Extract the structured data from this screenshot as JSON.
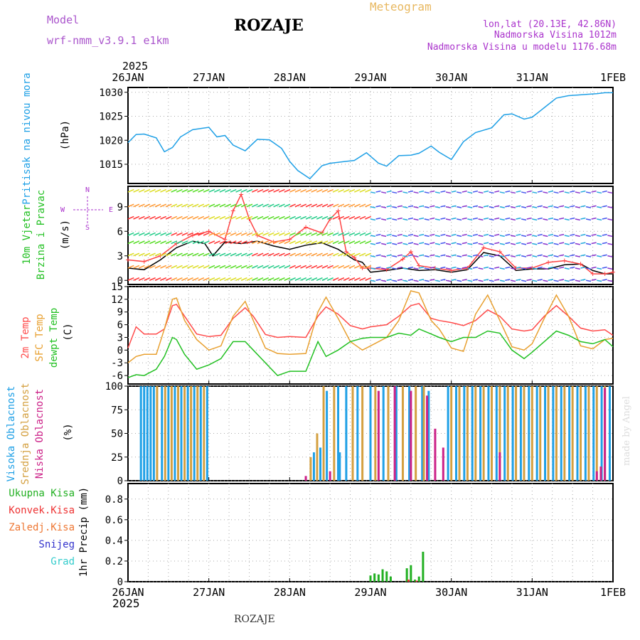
{
  "header": {
    "model_label": "Model",
    "model_name": "wrf-nmm_v3.9.1 e1km",
    "station": "ROZAJE",
    "title": "Meteogram",
    "coords": "lon,lat (20.13E, 42.86N)",
    "elevation": "Nadmorska Visina 1012m",
    "model_elevation": "Nadmorska Visina u modelu 1176.68m",
    "footer_station": "ROZAJE",
    "credit": "made by Angel",
    "year": "2025",
    "colors": {
      "model": "#aa55cc",
      "title": "#e8b860",
      "coords": "#aa33cc"
    }
  },
  "time_axis": {
    "labels": [
      "26JAN",
      "27JAN",
      "28JAN",
      "29JAN",
      "30JAN",
      "31JAN",
      "1FEB"
    ]
  },
  "chart_data": [
    {
      "type": "line",
      "id": "pressure",
      "ylabel_rotated": "Pritisak na nivou mora",
      "unit": "(hPa)",
      "ylim": [
        1011,
        1031
      ],
      "yticks": [
        1015,
        1020,
        1025,
        1030
      ],
      "grid": true,
      "series": [
        {
          "color": "#1fa0e6",
          "x": [
            0,
            0.1,
            0.2,
            0.35,
            0.45,
            0.55,
            0.65,
            0.8,
            1.0,
            1.1,
            1.2,
            1.3,
            1.45,
            1.6,
            1.75,
            1.9,
            2.0,
            2.1,
            2.25,
            2.4,
            2.5,
            2.6,
            2.7,
            2.8,
            2.95,
            3.1,
            3.2,
            3.35,
            3.5,
            3.6,
            3.75,
            3.85,
            4.0,
            4.15,
            4.3,
            4.5,
            4.65,
            4.75,
            4.9,
            5.0,
            5.15,
            5.3,
            5.45,
            5.55,
            5.7,
            5.8,
            5.9,
            6.0
          ],
          "values": [
            1019.5,
            1021.2,
            1021.3,
            1020.5,
            1017.6,
            1018.5,
            1020.7,
            1022.2,
            1022.7,
            1020.7,
            1021.0,
            1019.0,
            1017.8,
            1020.2,
            1020.1,
            1018.3,
            1015.6,
            1013.7,
            1012.0,
            1014.7,
            1015.2,
            1015.4,
            1015.6,
            1015.8,
            1017.4,
            1015.2,
            1014.6,
            1016.8,
            1016.9,
            1017.3,
            1018.8,
            1017.5,
            1016.0,
            1019.7,
            1021.6,
            1022.6,
            1025.3,
            1025.5,
            1024.4,
            1024.8,
            1026.8,
            1028.8,
            1029.3,
            1029.4,
            1029.6,
            1029.7,
            1029.9,
            1029.9
          ]
        }
      ]
    },
    {
      "type": "line",
      "id": "wind",
      "ylabel_rotated": [
        "10m Vjetar",
        "Brzina i Pravac"
      ],
      "unit": "(m/s)",
      "compass": {
        "n": "N",
        "e": "E",
        "s": "S",
        "w": "W"
      },
      "ylim": [
        -0.5,
        11.5
      ],
      "yticks": [
        0,
        3,
        6,
        9
      ],
      "grid": true,
      "series": [
        {
          "name": "speed",
          "color": "#000000",
          "x": [
            0,
            0.2,
            0.4,
            0.6,
            0.8,
            0.95,
            1.05,
            1.2,
            1.4,
            1.6,
            1.8,
            2.0,
            2.2,
            2.4,
            2.6,
            2.8,
            2.9,
            3.0,
            3.2,
            3.4,
            3.6,
            3.8,
            4.0,
            4.2,
            4.4,
            4.6,
            4.8,
            5.0,
            5.2,
            5.4,
            5.6,
            5.75,
            5.9,
            6.0
          ],
          "values": [
            1.5,
            1.3,
            2.5,
            4.0,
            4.8,
            4.5,
            3.0,
            4.7,
            4.5,
            4.8,
            4.2,
            3.8,
            4.3,
            4.6,
            3.8,
            2.5,
            2.2,
            1.0,
            1.2,
            1.5,
            1.2,
            1.3,
            1.0,
            1.3,
            3.4,
            3.0,
            1.2,
            1.4,
            1.4,
            1.9,
            2.0,
            1.2,
            0.8,
            0.8
          ]
        },
        {
          "name": "gust",
          "color": "#ff4444",
          "x": [
            0,
            0.2,
            0.4,
            0.6,
            0.8,
            1.0,
            1.2,
            1.3,
            1.4,
            1.5,
            1.6,
            1.8,
            2.0,
            2.2,
            2.4,
            2.5,
            2.6,
            2.7,
            2.8,
            2.9,
            3.0,
            3.2,
            3.4,
            3.5,
            3.6,
            3.8,
            4.0,
            4.2,
            4.4,
            4.6,
            4.8,
            5.0,
            5.2,
            5.4,
            5.6,
            5.75,
            5.9,
            6.0
          ],
          "values": [
            2.5,
            2.3,
            3.0,
            4.5,
            5.5,
            6.0,
            5.0,
            8.5,
            10.5,
            7.5,
            5.5,
            4.7,
            5.0,
            6.5,
            5.8,
            7.5,
            8.5,
            3.5,
            2.8,
            1.5,
            1.5,
            1.3,
            2.6,
            3.5,
            1.8,
            1.5,
            1.2,
            1.5,
            4.0,
            3.5,
            1.5,
            1.5,
            2.2,
            2.4,
            2.0,
            0.8,
            0.8,
            1.0
          ]
        }
      ]
    },
    {
      "type": "line",
      "id": "temperature",
      "ylabel_rotated": [
        {
          "text": "2m Temp",
          "color": "#ff4a4a"
        },
        {
          "text": "SFC Temp",
          "color": "#e8a030"
        },
        {
          "text": "dewpt Temp",
          "color": "#22c022"
        }
      ],
      "unit": "(C)",
      "ylim": [
        -8,
        15
      ],
      "yticks": [
        -6,
        -3,
        0,
        3,
        6,
        9,
        12,
        15
      ],
      "grid": true,
      "series": [
        {
          "name": "2m Temp",
          "color": "#ff4a4a",
          "x": [
            0,
            0.1,
            0.2,
            0.35,
            0.45,
            0.55,
            0.6,
            0.7,
            0.85,
            1.0,
            1.15,
            1.3,
            1.45,
            1.55,
            1.7,
            1.85,
            2.0,
            2.2,
            2.35,
            2.45,
            2.6,
            2.75,
            2.9,
            3.0,
            3.2,
            3.35,
            3.5,
            3.6,
            3.75,
            3.85,
            4.0,
            4.15,
            4.3,
            4.45,
            4.6,
            4.75,
            4.9,
            5.0,
            5.15,
            5.3,
            5.45,
            5.6,
            5.75,
            5.9,
            6.0
          ],
          "values": [
            0.5,
            5.5,
            3.8,
            3.8,
            5.0,
            10.5,
            10.8,
            8.0,
            3.8,
            3.2,
            3.5,
            7.5,
            10.0,
            8.0,
            3.7,
            3.0,
            3.2,
            3.0,
            8.0,
            10.2,
            8.5,
            5.8,
            5.0,
            5.5,
            6.0,
            8.0,
            10.5,
            11.0,
            7.5,
            7.0,
            6.5,
            5.8,
            7.0,
            9.5,
            8.0,
            5.0,
            4.5,
            4.8,
            8.0,
            10.5,
            8.0,
            5.2,
            4.5,
            4.8,
            3.5
          ]
        },
        {
          "name": "SFC Temp",
          "color": "#e8a030",
          "x": [
            0,
            0.1,
            0.2,
            0.35,
            0.45,
            0.55,
            0.6,
            0.7,
            0.85,
            1.0,
            1.15,
            1.3,
            1.45,
            1.55,
            1.7,
            1.85,
            2.0,
            2.2,
            2.35,
            2.45,
            2.6,
            2.75,
            2.9,
            3.0,
            3.2,
            3.35,
            3.5,
            3.6,
            3.75,
            3.85,
            4.0,
            4.15,
            4.3,
            4.45,
            4.6,
            4.75,
            4.9,
            5.0,
            5.15,
            5.3,
            5.45,
            5.6,
            5.75,
            5.9,
            6.0
          ],
          "values": [
            -3.0,
            -1.5,
            -1.0,
            -1.0,
            5.0,
            12.0,
            12.3,
            7.0,
            2.5,
            0.0,
            1.0,
            8.0,
            11.5,
            7.0,
            0.5,
            -0.8,
            -1.0,
            -0.8,
            9.0,
            12.5,
            7.5,
            2.0,
            0.0,
            1.0,
            3.0,
            7.0,
            14.0,
            13.5,
            7.0,
            5.0,
            0.5,
            -0.3,
            8.5,
            13.0,
            7.0,
            0.8,
            0.0,
            1.5,
            7.5,
            13.0,
            8.0,
            1.0,
            0.3,
            2.5,
            2.8
          ]
        },
        {
          "name": "dewpt Temp",
          "color": "#22c022",
          "x": [
            0,
            0.1,
            0.2,
            0.35,
            0.45,
            0.55,
            0.6,
            0.7,
            0.85,
            1.0,
            1.15,
            1.3,
            1.45,
            1.55,
            1.7,
            1.85,
            2.0,
            2.2,
            2.35,
            2.45,
            2.6,
            2.75,
            2.9,
            3.0,
            3.2,
            3.35,
            3.5,
            3.6,
            3.75,
            3.85,
            4.0,
            4.15,
            4.3,
            4.45,
            4.6,
            4.75,
            4.9,
            5.0,
            5.15,
            5.3,
            5.45,
            5.6,
            5.75,
            5.9,
            6.0
          ],
          "values": [
            -6.5,
            -5.8,
            -6.0,
            -4.5,
            -1.5,
            3.0,
            2.5,
            -1.0,
            -4.5,
            -3.5,
            -2.0,
            2.0,
            2.0,
            0.0,
            -3.0,
            -6.0,
            -5.0,
            -5.0,
            2.0,
            -1.5,
            0.0,
            2.0,
            2.8,
            3.0,
            3.0,
            4.0,
            3.5,
            5.0,
            3.8,
            3.0,
            2.0,
            3.0,
            3.0,
            4.5,
            4.0,
            0.0,
            -2.0,
            -0.5,
            2.0,
            4.5,
            3.5,
            2.0,
            1.5,
            2.5,
            0.8
          ]
        }
      ]
    },
    {
      "type": "bar",
      "id": "clouds",
      "ylabel_rotated": [
        {
          "text": "Visoka Oblacnost",
          "color": "#1fa0e6"
        },
        {
          "text": "Srednja Oblacnost",
          "color": "#d4a040"
        },
        {
          "text": "Niska Oblacnost",
          "color": "#cc2288"
        }
      ],
      "unit": "(%)",
      "ylim": [
        0,
        100
      ],
      "yticks": [
        0,
        25,
        50,
        75,
        100
      ],
      "grid": true,
      "series": [
        {
          "name": "Visoka Oblacnost",
          "color": "#1fa0e6",
          "x": [
            0.16,
            0.2,
            0.24,
            0.28,
            0.32,
            0.42,
            0.5,
            0.58,
            0.66,
            0.74,
            0.82,
            0.9,
            0.98,
            2.3,
            2.38,
            2.46,
            2.6,
            2.62,
            2.7,
            2.84,
            3.0,
            3.16,
            3.32,
            3.48,
            3.64,
            3.72,
            3.96,
            4.06,
            4.16,
            4.26,
            4.36,
            4.46,
            4.56,
            4.66,
            4.76,
            4.86,
            4.96,
            5.06,
            5.16,
            5.26,
            5.36,
            5.46,
            5.56,
            5.66,
            5.76,
            5.86,
            5.96
          ],
          "values": [
            100,
            100,
            100,
            100,
            100,
            100,
            100,
            100,
            100,
            100,
            100,
            100,
            100,
            30,
            35,
            95,
            100,
            30,
            100,
            100,
            100,
            100,
            100,
            100,
            100,
            95,
            100,
            100,
            100,
            100,
            100,
            100,
            100,
            100,
            100,
            100,
            100,
            100,
            100,
            100,
            100,
            100,
            100,
            100,
            100,
            100,
            100
          ]
        },
        {
          "name": "Srednja Oblacnost",
          "color": "#d4a040",
          "x": [
            0.36,
            0.46,
            0.54,
            0.62,
            0.7,
            0.78,
            0.86,
            0.94,
            2.26,
            2.34,
            2.42,
            2.55,
            2.78,
            2.9,
            3.06,
            3.22,
            3.4,
            3.56,
            3.66,
            4.0,
            4.1,
            4.2,
            4.3,
            4.4,
            4.5,
            4.6,
            4.7,
            4.8,
            4.9,
            5.0,
            5.1,
            5.2,
            5.3,
            5.4,
            5.5,
            5.6,
            5.7,
            5.8,
            5.9
          ],
          "values": [
            100,
            100,
            100,
            100,
            100,
            100,
            100,
            100,
            25,
            50,
            100,
            100,
            100,
            100,
            100,
            100,
            100,
            100,
            100,
            100,
            100,
            100,
            100,
            100,
            100,
            100,
            100,
            100,
            100,
            100,
            100,
            100,
            100,
            100,
            100,
            100,
            100,
            100,
            100
          ]
        },
        {
          "name": "Niska Oblacnost",
          "color": "#cc2288",
          "x": [
            2.2,
            2.5,
            3.1,
            3.3,
            3.5,
            3.7,
            3.8,
            3.9,
            4.6,
            5.8,
            5.85,
            5.9
          ],
          "values": [
            5,
            10,
            95,
            100,
            95,
            90,
            55,
            35,
            30,
            10,
            15,
            98
          ]
        }
      ]
    },
    {
      "type": "bar",
      "id": "precip",
      "legend": [
        {
          "text": "Ukupna Kisa",
          "color": "#22b022"
        },
        {
          "text": "Konvek.Kisa",
          "color": "#ee3333"
        },
        {
          "text": "Zaledj.Kisa",
          "color": "#ee7733"
        },
        {
          "text": "Snijeg",
          "color": "#3333cc"
        },
        {
          "text": "Grad",
          "color": "#33cccc"
        }
      ],
      "ylabel_rotated": "1hr Precip (mm)",
      "ylim": [
        0,
        0.95
      ],
      "yticks": [
        0,
        0.2,
        0.4,
        0.6,
        0.8
      ],
      "grid": true,
      "series": [
        {
          "name": "Ukupna Kisa",
          "color": "#22b022",
          "x": [
            3.0,
            3.05,
            3.1,
            3.15,
            3.2,
            3.25,
            3.45,
            3.5,
            3.55,
            3.6,
            3.65
          ],
          "values": [
            0.06,
            0.08,
            0.07,
            0.12,
            0.1,
            0.05,
            0.13,
            0.16,
            0.02,
            0.05,
            0.29
          ]
        },
        {
          "name": "Konvek.Kisa",
          "color": "#ee3333",
          "x": [
            3.47,
            3.57
          ],
          "values": [
            0.02,
            0.01
          ]
        },
        {
          "name": "Zaledj.Kisa",
          "color": "#ee7733",
          "x": [],
          "values": []
        },
        {
          "name": "Snijeg",
          "color": "#3333cc",
          "x": [],
          "values": []
        },
        {
          "name": "Grad",
          "color": "#33cccc",
          "x": [],
          "values": []
        }
      ]
    }
  ]
}
